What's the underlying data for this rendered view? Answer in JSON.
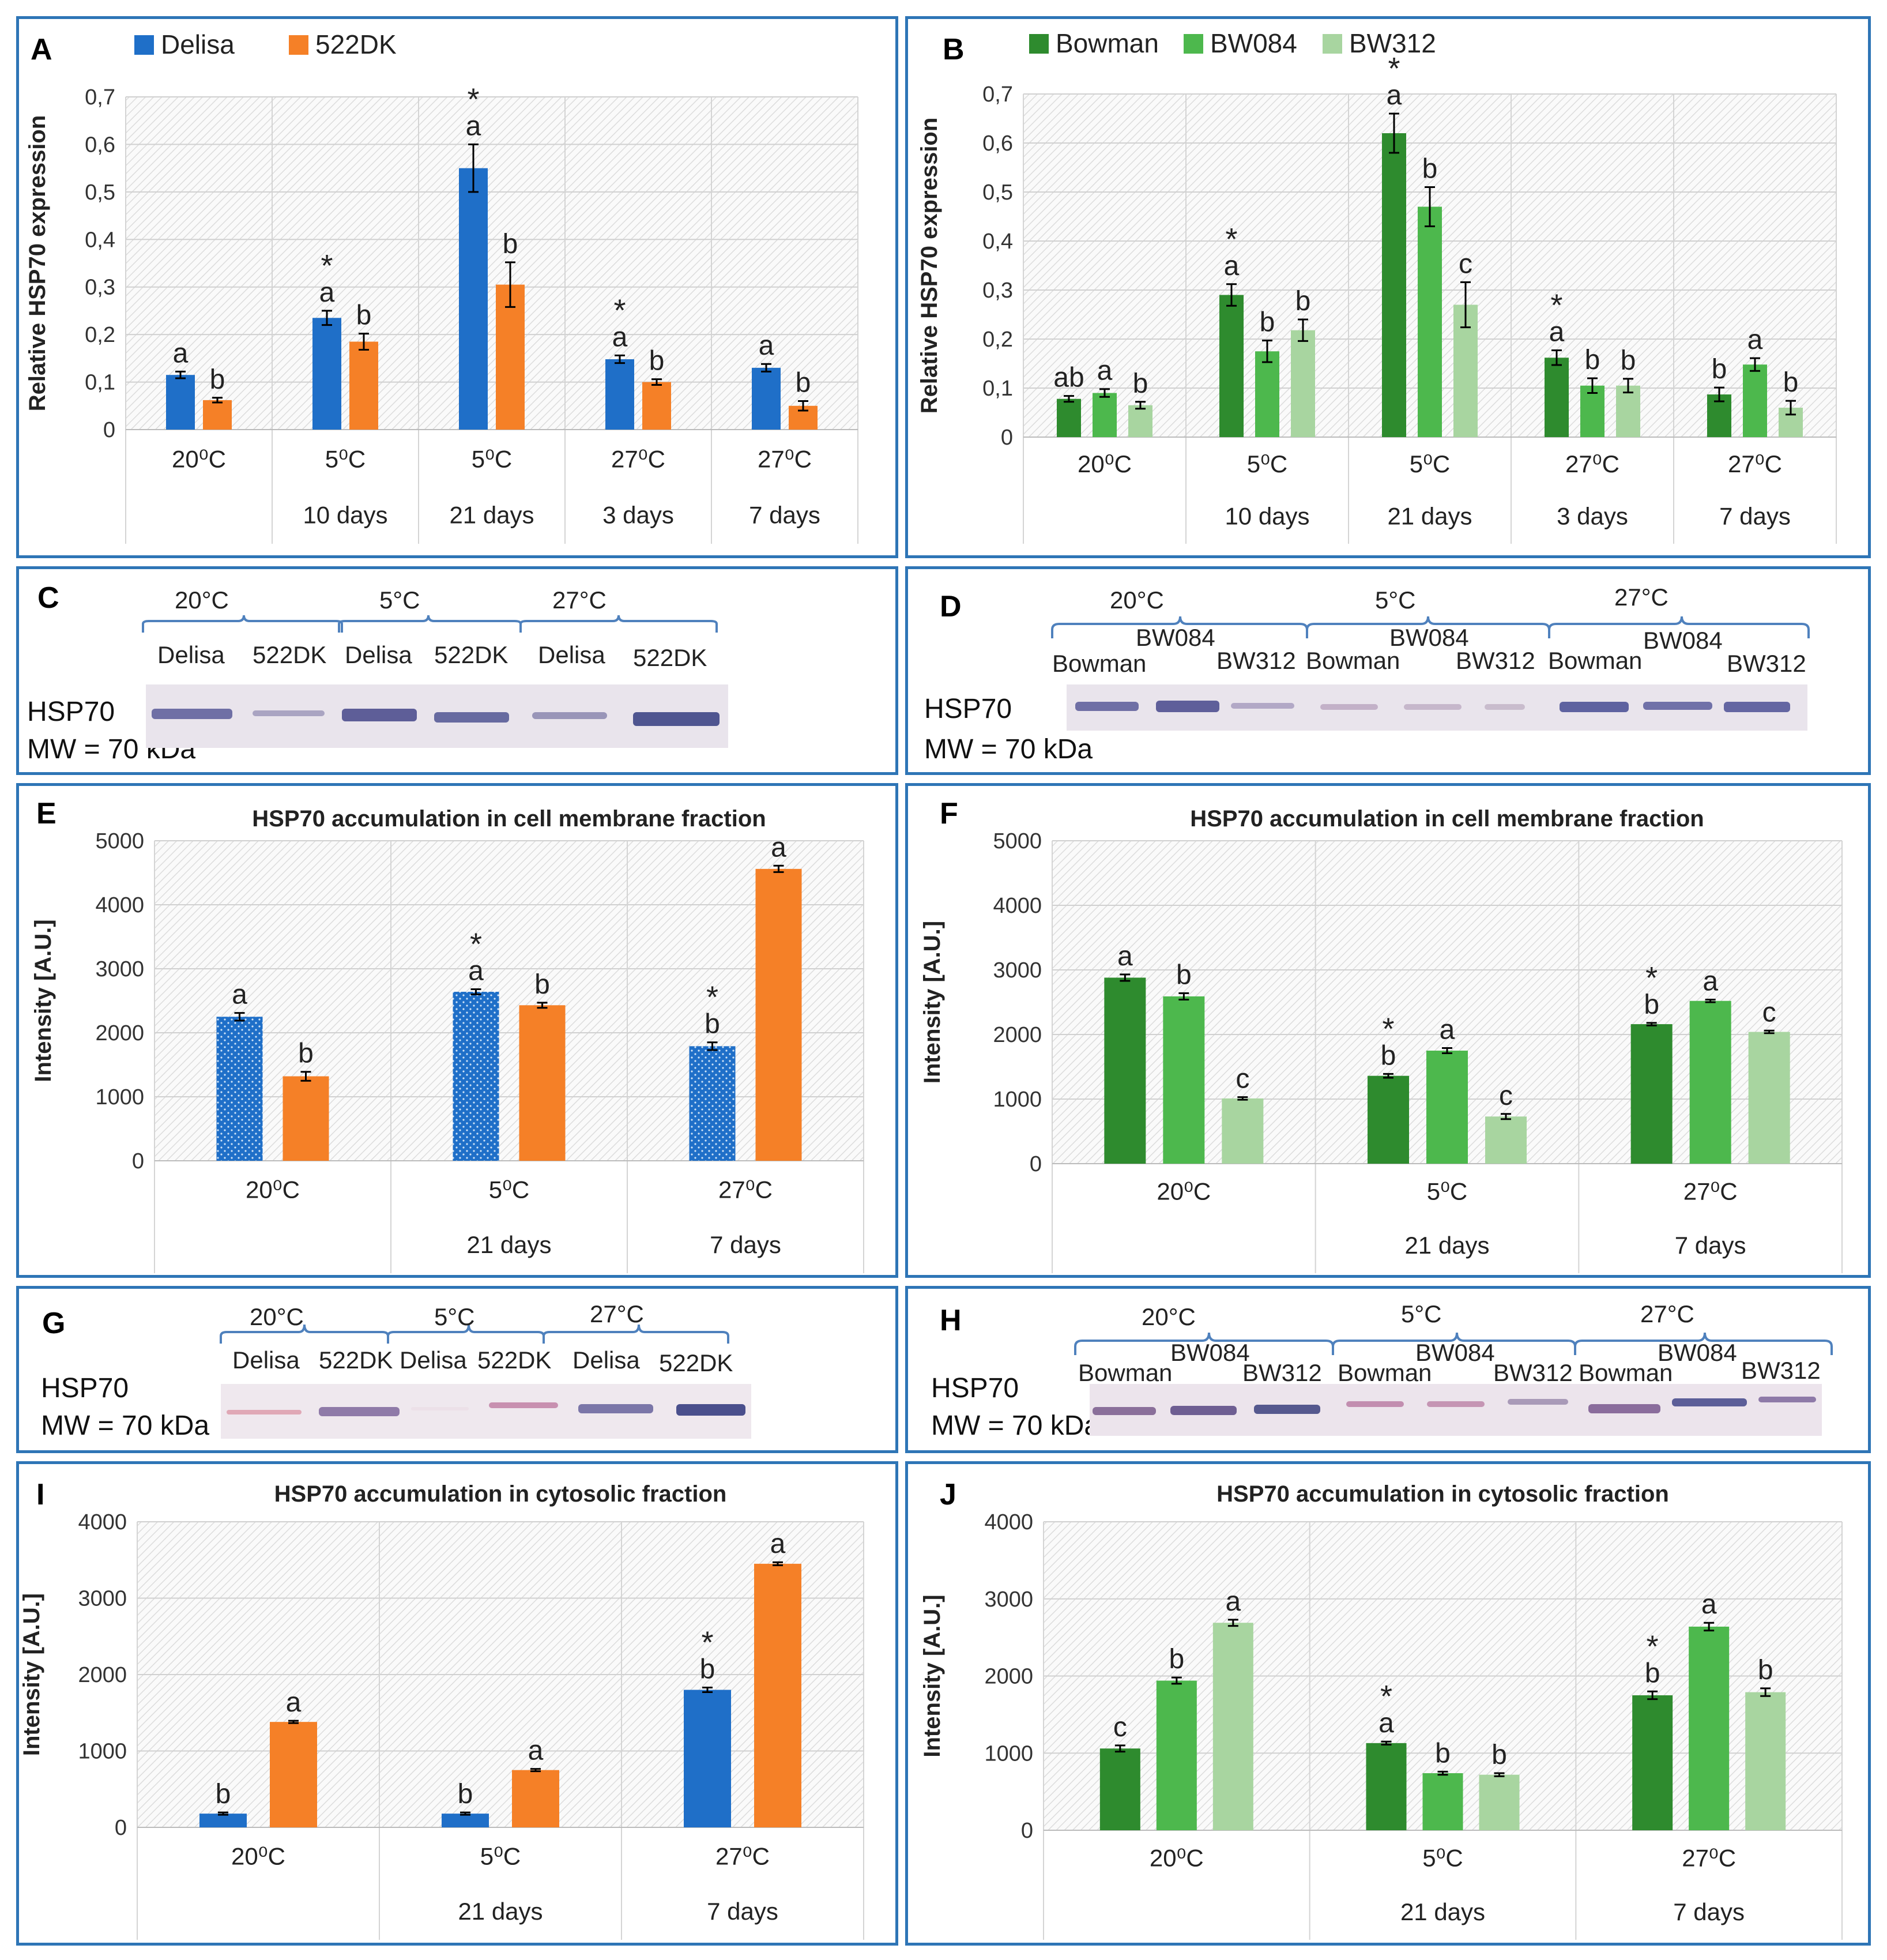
{
  "colors": {
    "delisa": "#1f6fc8",
    "dk522": "#f58027",
    "bowman": "#2e8b2e",
    "bw084": "#4db84d",
    "bw312": "#a8d5a0",
    "border": "#2e75b6",
    "band": "#5a5a98"
  },
  "blots": {
    "C": {
      "letter": "C",
      "temps": [
        "20°C",
        "5°C",
        "27°C"
      ],
      "lanes": [
        "Delisa",
        "522DK",
        "Delisa",
        "522DK",
        "Delisa",
        "522DK"
      ],
      "protein": "HSP70",
      "mw": "MW = 70 kDa"
    },
    "D": {
      "letter": "D",
      "temps": [
        "20°C",
        "5°C",
        "27°C"
      ],
      "lanes_upper": [
        "BW084",
        "BW084",
        "BW084"
      ],
      "lanes_lower": [
        "Bowman",
        "BW312",
        "Bowman",
        "BW312",
        "Bowman",
        "BW312"
      ],
      "protein": "HSP70",
      "mw": "MW = 70 kDa"
    },
    "G": {
      "letter": "G",
      "temps": [
        "20°C",
        "5°C",
        "27°C"
      ],
      "lanes": [
        "Delisa",
        "522DK",
        "Delisa",
        "522DK",
        "Delisa",
        "522DK"
      ],
      "protein": "HSP70",
      "mw": "MW = 70 kDa"
    },
    "H": {
      "letter": "H",
      "temps": [
        "20°C",
        "5°C",
        "27°C"
      ],
      "lanes_upper": [
        "BW084",
        "BW084",
        "BW084"
      ],
      "lanes_lower": [
        "Bowman",
        "BW312",
        "Bowman",
        "BW312",
        "Bowman",
        "BW312"
      ],
      "protein": "HSP70",
      "mw": "MW = 70 kDa"
    }
  },
  "chart_data": [
    {
      "panel": "A",
      "type": "bar",
      "title": "",
      "ylabel": "Relative HSP70 expression",
      "ylim": [
        0,
        0.7
      ],
      "yticks": [
        "0",
        "0,1",
        "0,2",
        "0,3",
        "0,4",
        "0,5",
        "0,6",
        "0,7"
      ],
      "categories": [
        "20⁰C",
        "5⁰C",
        "5⁰C",
        "27⁰C",
        "27⁰C"
      ],
      "subcategories": [
        "",
        "10 days",
        "21 days",
        "3 days",
        "7 days"
      ],
      "series": [
        {
          "name": "Delisa",
          "color_key": "delisa",
          "values": [
            0.115,
            0.235,
            0.55,
            0.148,
            0.13
          ],
          "errors": [
            0.007,
            0.015,
            0.05,
            0.008,
            0.008
          ],
          "letters": [
            "a",
            "a",
            "a",
            "a",
            "a"
          ],
          "stars": [
            false,
            true,
            true,
            true,
            false
          ]
        },
        {
          "name": "522DK",
          "color_key": "dk522",
          "values": [
            0.062,
            0.185,
            0.305,
            0.1,
            0.05
          ],
          "errors": [
            0.005,
            0.017,
            0.047,
            0.006,
            0.01
          ],
          "letters": [
            "b",
            "b",
            "b",
            "b",
            "b"
          ],
          "stars": [
            false,
            false,
            false,
            false,
            false
          ]
        }
      ]
    },
    {
      "panel": "B",
      "type": "bar",
      "title": "",
      "ylabel": "Relative HSP70 expression",
      "ylim": [
        0,
        0.7
      ],
      "yticks": [
        "0",
        "0,1",
        "0,2",
        "0,3",
        "0,4",
        "0,5",
        "0,6",
        "0,7"
      ],
      "categories": [
        "20⁰C",
        "5⁰C",
        "5⁰C",
        "27⁰C",
        "27⁰C"
      ],
      "subcategories": [
        "",
        "10 days",
        "21 days",
        "3 days",
        "7 days"
      ],
      "series": [
        {
          "name": "Bowman",
          "color_key": "bowman",
          "values": [
            0.078,
            0.29,
            0.62,
            0.162,
            0.087
          ],
          "errors": [
            0.006,
            0.022,
            0.04,
            0.015,
            0.014
          ],
          "letters": [
            "ab",
            "a",
            "a",
            "a",
            "b"
          ],
          "stars": [
            false,
            true,
            true,
            true,
            false
          ]
        },
        {
          "name": "BW084",
          "color_key": "bw084",
          "values": [
            0.09,
            0.175,
            0.47,
            0.105,
            0.148
          ],
          "errors": [
            0.008,
            0.022,
            0.04,
            0.015,
            0.013
          ],
          "letters": [
            "a",
            "b",
            "b",
            "b",
            "a"
          ],
          "stars": [
            false,
            false,
            false,
            false,
            false
          ]
        },
        {
          "name": "BW312",
          "color_key": "bw312",
          "values": [
            0.065,
            0.218,
            0.27,
            0.105,
            0.06
          ],
          "errors": [
            0.007,
            0.022,
            0.046,
            0.014,
            0.014
          ],
          "letters": [
            "b",
            "b",
            "c",
            "b",
            "b"
          ],
          "stars": [
            false,
            false,
            false,
            false,
            false
          ]
        }
      ]
    },
    {
      "panel": "E",
      "type": "bar",
      "title": "HSP70 accumulation in cell membrane fraction",
      "ylabel": "Intensity [A.U.]",
      "ylim": [
        0,
        5000
      ],
      "yticks": [
        "0",
        "1000",
        "2000",
        "3000",
        "4000",
        "5000"
      ],
      "categories": [
        "20⁰C",
        "5⁰C",
        "27⁰C"
      ],
      "subcategories": [
        "",
        "21 days",
        "7 days"
      ],
      "series": [
        {
          "name": "Delisa",
          "color_key": "delisa",
          "dotted": true,
          "values": [
            2250,
            2640,
            1790
          ],
          "errors": [
            60,
            40,
            60
          ],
          "letters": [
            "a",
            "a",
            "b"
          ],
          "stars": [
            false,
            true,
            true
          ]
        },
        {
          "name": "522DK",
          "color_key": "dk522",
          "values": [
            1320,
            2430,
            4560
          ],
          "errors": [
            70,
            40,
            50
          ],
          "letters": [
            "b",
            "b",
            "a"
          ],
          "stars": [
            false,
            false,
            false
          ]
        }
      ]
    },
    {
      "panel": "F",
      "type": "bar",
      "title": "HSP70 accumulation in cell membrane fraction",
      "ylabel": "Intensity [A.U.]",
      "ylim": [
        0,
        5000
      ],
      "yticks": [
        "0",
        "1000",
        "2000",
        "3000",
        "4000",
        "5000"
      ],
      "categories": [
        "20⁰C",
        "5⁰C",
        "27⁰C"
      ],
      "subcategories": [
        "",
        "21 days",
        "7 days"
      ],
      "series": [
        {
          "name": "Bowman",
          "color_key": "bowman",
          "values": [
            2880,
            1360,
            2160
          ],
          "errors": [
            50,
            30,
            20
          ],
          "letters": [
            "a",
            "b",
            "b"
          ],
          "stars": [
            false,
            true,
            true
          ]
        },
        {
          "name": "BW084",
          "color_key": "bw084",
          "values": [
            2590,
            1750,
            2520
          ],
          "errors": [
            50,
            40,
            20
          ],
          "letters": [
            "b",
            "a",
            "a"
          ],
          "stars": [
            false,
            false,
            false
          ]
        },
        {
          "name": "BW312",
          "color_key": "bw312",
          "values": [
            1010,
            730,
            2040
          ],
          "errors": [
            20,
            40,
            20
          ],
          "letters": [
            "c",
            "c",
            "c"
          ],
          "stars": [
            false,
            false,
            false
          ]
        }
      ]
    },
    {
      "panel": "I",
      "type": "bar",
      "title": "HSP70 accumulation in cytosolic fraction",
      "ylabel": "Intensity [A.U.]",
      "ylim": [
        0,
        4000
      ],
      "yticks": [
        "0",
        "1000",
        "2000",
        "3000",
        "4000"
      ],
      "categories": [
        "20⁰C",
        "5⁰C",
        "27⁰C"
      ],
      "subcategories": [
        "",
        "21 days",
        "7 days"
      ],
      "series": [
        {
          "name": "Delisa",
          "color_key": "delisa",
          "values": [
            180,
            180,
            1800
          ],
          "errors": [
            15,
            15,
            30
          ],
          "letters": [
            "b",
            "b",
            "b"
          ],
          "stars": [
            false,
            false,
            true
          ]
        },
        {
          "name": "522DK",
          "color_key": "dk522",
          "values": [
            1380,
            750,
            3450
          ],
          "errors": [
            15,
            15,
            20
          ],
          "letters": [
            "a",
            "a",
            "a"
          ],
          "stars": [
            false,
            false,
            false
          ]
        }
      ]
    },
    {
      "panel": "J",
      "type": "bar",
      "title": "HSP70 accumulation in cytosolic fraction",
      "ylabel": "Intensity [A.U.]",
      "ylim": [
        0,
        4000
      ],
      "yticks": [
        "0",
        "1000",
        "2000",
        "3000",
        "4000"
      ],
      "categories": [
        "20⁰C",
        "5⁰C",
        "27⁰C"
      ],
      "subcategories": [
        "",
        "21 days",
        "7 days"
      ],
      "series": [
        {
          "name": "Bowman",
          "color_key": "bowman",
          "values": [
            1060,
            1130,
            1750
          ],
          "errors": [
            40,
            20,
            50
          ],
          "letters": [
            "c",
            "a",
            "b"
          ],
          "stars": [
            false,
            true,
            true
          ]
        },
        {
          "name": "BW084",
          "color_key": "bw084",
          "values": [
            1940,
            740,
            2640
          ],
          "errors": [
            40,
            20,
            50
          ],
          "letters": [
            "b",
            "b",
            "a"
          ],
          "stars": [
            false,
            false,
            false
          ]
        },
        {
          "name": "BW312",
          "color_key": "bw312",
          "values": [
            2690,
            720,
            1790
          ],
          "errors": [
            40,
            20,
            50
          ],
          "letters": [
            "a",
            "b",
            "b"
          ],
          "stars": [
            false,
            false,
            false
          ]
        }
      ]
    }
  ]
}
